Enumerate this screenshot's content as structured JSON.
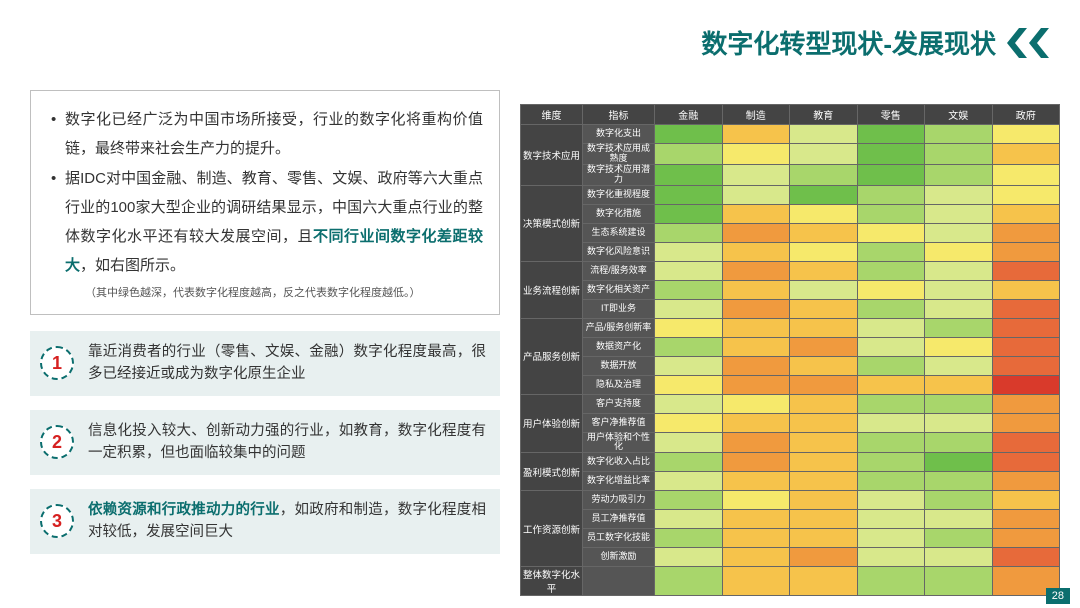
{
  "title": {
    "text": "数字化转型现状-发展现状",
    "color": "#0b6e6e"
  },
  "chevron_color": "#0b6e6e",
  "intro": {
    "bullet1": "数字化已经广泛为中国市场所接受，行业的数字化将重构价值链，最终带来社会生产力的提升。",
    "bullet2_a": "据IDC对中国金融、制造、教育、零售、文娱、政府等六大重点行业的100家大型企业的调研结果显示，中国六大重点行业的整体数字化水平还有较大发展空间，且",
    "bullet2_hl": "不同行业间数字化差距较大",
    "bullet2_b": "，如右图所示。",
    "note": "（其中绿色越深，代表数字化程度越高，反之代表数字化程度越低。）"
  },
  "points": [
    {
      "num": "1",
      "text_a": "靠近消费者的行业（零售、文娱、金融）数字化程度最高，很多已经接近或成为数字化原生企业",
      "text_hl": "",
      "text_b": ""
    },
    {
      "num": "2",
      "text_a": "信息化投入较大、创新动力强的行业，如教育，数字化程度有一定积累，但也面临较集中的问题",
      "text_hl": "",
      "text_b": ""
    },
    {
      "num": "3",
      "text_a": "",
      "text_hl": "依赖资源和行政推动力的行业",
      "text_b": "，如政府和制造，数字化程度相对较低，发展空间巨大"
    }
  ],
  "heatmap": {
    "col_headers": [
      "维度",
      "指标",
      "金融",
      "制造",
      "教育",
      "零售",
      "文娱",
      "政府"
    ],
    "palette": {
      "g4": "#2e8b2e",
      "g3": "#6fbf4b",
      "g2": "#a8d66b",
      "g1": "#d8e88b",
      "y": "#f6e96b",
      "o1": "#f6c34b",
      "o2": "#f09a3e",
      "r1": "#e76a3a",
      "r2": "#d93a2b"
    },
    "groups": [
      {
        "dim": "数字技术应用",
        "rows": [
          {
            "ind": "数字化支出",
            "v": [
              "g3",
              "o1",
              "g1",
              "g3",
              "g2",
              "y"
            ]
          },
          {
            "ind": "数字技术应用成熟度",
            "v": [
              "g2",
              "y",
              "g1",
              "g3",
              "g2",
              "o1"
            ]
          },
          {
            "ind": "数字技术应用潜力",
            "v": [
              "g3",
              "g1",
              "g2",
              "g3",
              "g2",
              "y"
            ]
          }
        ]
      },
      {
        "dim": "决策模式创新",
        "rows": [
          {
            "ind": "数字化重视程度",
            "v": [
              "g3",
              "g1",
              "g3",
              "g2",
              "g1",
              "y"
            ]
          },
          {
            "ind": "数字化措施",
            "v": [
              "g3",
              "o1",
              "y",
              "g2",
              "g1",
              "o1"
            ]
          },
          {
            "ind": "生态系统建设",
            "v": [
              "g2",
              "o2",
              "o1",
              "y",
              "g1",
              "o2"
            ]
          },
          {
            "ind": "数字化风险意识",
            "v": [
              "g1",
              "o1",
              "y",
              "g2",
              "y",
              "o2"
            ]
          }
        ]
      },
      {
        "dim": "业务流程创新",
        "rows": [
          {
            "ind": "流程/服务效率",
            "v": [
              "g1",
              "o2",
              "o1",
              "g2",
              "g1",
              "r1"
            ]
          },
          {
            "ind": "数字化相关资产",
            "v": [
              "g2",
              "o1",
              "g1",
              "y",
              "g1",
              "o1"
            ]
          },
          {
            "ind": "IT即业务",
            "v": [
              "g1",
              "o2",
              "o1",
              "g2",
              "g1",
              "r1"
            ]
          }
        ]
      },
      {
        "dim": "产品服务创新",
        "rows": [
          {
            "ind": "产品/服务创新率",
            "v": [
              "y",
              "o1",
              "o1",
              "g1",
              "g2",
              "r1"
            ]
          },
          {
            "ind": "数据资产化",
            "v": [
              "g2",
              "o1",
              "o2",
              "g1",
              "y",
              "r1"
            ]
          },
          {
            "ind": "数据开放",
            "v": [
              "g1",
              "o2",
              "o1",
              "g2",
              "g1",
              "r1"
            ]
          },
          {
            "ind": "隐私及治理",
            "v": [
              "y",
              "o2",
              "o2",
              "o1",
              "o1",
              "r2"
            ]
          }
        ]
      },
      {
        "dim": "用户体验创新",
        "rows": [
          {
            "ind": "客户支持度",
            "v": [
              "g1",
              "y",
              "o1",
              "g2",
              "g2",
              "o2"
            ]
          },
          {
            "ind": "客户净推荐值",
            "v": [
              "y",
              "o1",
              "o1",
              "g1",
              "g1",
              "o2"
            ]
          },
          {
            "ind": "用户体验和个性化",
            "v": [
              "g1",
              "o2",
              "o1",
              "g2",
              "g2",
              "r1"
            ]
          }
        ]
      },
      {
        "dim": "盈利模式创新",
        "rows": [
          {
            "ind": "数字化收入占比",
            "v": [
              "g2",
              "o2",
              "o1",
              "g2",
              "g3",
              "r1"
            ]
          },
          {
            "ind": "数字化增益比率",
            "v": [
              "g1",
              "o1",
              "o1",
              "g2",
              "g2",
              "o2"
            ]
          }
        ]
      },
      {
        "dim": "工作资源创新",
        "rows": [
          {
            "ind": "劳动力吸引力",
            "v": [
              "g2",
              "y",
              "o1",
              "g1",
              "g2",
              "o1"
            ]
          },
          {
            "ind": "员工净推荐值",
            "v": [
              "g1",
              "o1",
              "o1",
              "g1",
              "g1",
              "o2"
            ]
          },
          {
            "ind": "员工数字化技能",
            "v": [
              "g2",
              "o1",
              "o1",
              "g1",
              "g2",
              "o2"
            ]
          },
          {
            "ind": "创新激励",
            "v": [
              "g1",
              "o1",
              "o2",
              "g1",
              "g1",
              "r1"
            ]
          }
        ]
      },
      {
        "dim": "整体数字化水平",
        "rows": [
          {
            "ind": "",
            "v": [
              "g2",
              "o1",
              "o1",
              "g2",
              "g2",
              "o2"
            ]
          }
        ]
      }
    ]
  },
  "page_number": "28"
}
